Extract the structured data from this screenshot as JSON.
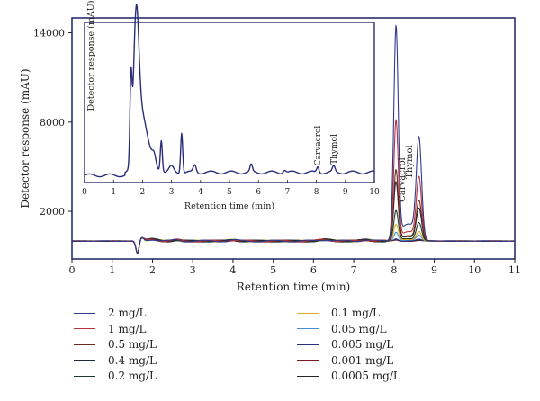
{
  "chart_data": {
    "type": "line",
    "xlabel": "Retention time (min)",
    "ylabel": "Detector response (mAU)",
    "xlim": [
      0,
      11
    ],
    "ylim": [
      -1200,
      15000
    ],
    "x_ticks": [
      0,
      1,
      2,
      3,
      4,
      5,
      6,
      7,
      8,
      9,
      10,
      11
    ],
    "y_ticks": [
      2000,
      8000,
      14000
    ],
    "grid": false,
    "legend_position": "bottom",
    "peak_labels": [
      "Carvacrol",
      "Thymol"
    ],
    "series": [
      {
        "name": "2 mg/L",
        "color": "#2f3a8a",
        "carvacrol": 14200,
        "thymol": 6600
      },
      {
        "name": "1 mg/L",
        "color": "#b8323f",
        "carvacrol": 8000,
        "thymol": 4100
      },
      {
        "name": "0.5 mg/L",
        "color": "#6b2a1f",
        "carvacrol": 4700,
        "thymol": 2600
      },
      {
        "name": "0.4 mg/L",
        "color": "#1f2a3a",
        "carvacrol": 3900,
        "thymol": 2100
      },
      {
        "name": "0.2 mg/L",
        "color": "#1f3a2a",
        "carvacrol": 2000,
        "thymol": 1200
      },
      {
        "name": "0.1 mg/L",
        "color": "#e0b21e",
        "carvacrol": 1100,
        "thymol": 640
      },
      {
        "name": "0.05 mg/L",
        "color": "#3f8fd2",
        "carvacrol": 600,
        "thymol": 380
      },
      {
        "name": "0.005 mg/L",
        "color": "#2a2e82",
        "carvacrol": 160,
        "thymol": 110
      },
      {
        "name": "0.001 mg/L",
        "color": "#7a1a22",
        "carvacrol": 80,
        "thymol": 60
      },
      {
        "name": "0.0005 mg/L",
        "color": "#24282a",
        "carvacrol": 50,
        "thymol": 40
      }
    ],
    "inset": {
      "xlabel": "Retention time (min)",
      "ylabel": "Detector response (mAU)",
      "xlim": [
        0,
        10
      ],
      "x_ticks": [
        0,
        1,
        2,
        3,
        4,
        5,
        6,
        7,
        8,
        9,
        10
      ],
      "peak_labels": [
        "Carvacrol",
        "Thymol"
      ],
      "peaks": [
        {
          "x": 1.62,
          "height": 0.55
        },
        {
          "x": 1.78,
          "height": 0.95
        },
        {
          "x": 2.65,
          "height": 0.22
        },
        {
          "x": 3.35,
          "height": 0.28
        },
        {
          "x": 5.75,
          "height": 0.05
        },
        {
          "x": 8.05,
          "height": 0.04
        },
        {
          "x": 8.6,
          "height": 0.04
        }
      ]
    }
  }
}
